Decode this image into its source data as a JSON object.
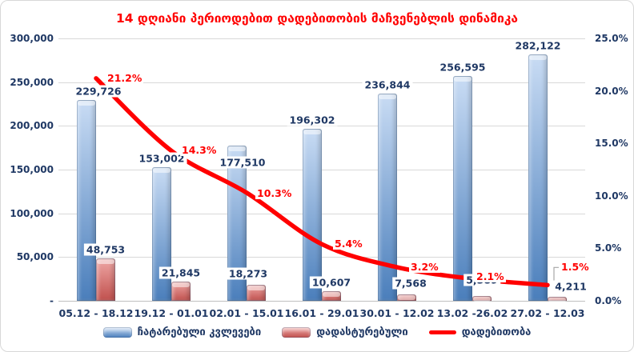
{
  "title": "14 დღიანი პერიოდებით დადებითობის მაჩვენებლის დინამიკა",
  "colors": {
    "title": "#FF0000",
    "axis_text": "#1F3864",
    "line": "#FF0000",
    "bar_blue_top": "#C9DCF4",
    "bar_blue_bottom": "#4A7EBB",
    "bar_red_top": "#EFA8A6",
    "bar_red_bottom": "#C0504D",
    "gridline": "#D9D9D9",
    "axis_line": "#BFBFBF",
    "callout": "#A6A6A6",
    "label_background": "#FFFFFF"
  },
  "chart_data": {
    "type": "bar",
    "subtype": "combo-bar-line",
    "title": "14 დღიანი პერიოდებით დადებითობის მაჩვენებლის დინამიკა",
    "grid": true,
    "legend_position": "bottom",
    "categories": [
      "05.12 - 18.12",
      "19.12 - 01.01",
      "02.01 - 15.01",
      "16.01 - 29.01",
      "30.01 - 12.02",
      "13.02 -26.02",
      "27.02 - 12.03"
    ],
    "series": [
      {
        "name": "ჩატარებული კვლევები",
        "type": "bar",
        "axis": "left",
        "values": [
          229726,
          153002,
          177510,
          196302,
          236844,
          256595,
          282122
        ],
        "labels": [
          "229,726",
          "153,002",
          "177,510",
          "196,302",
          "236,844",
          "256,595",
          "282,122"
        ]
      },
      {
        "name": "დადასტურებული",
        "type": "bar",
        "axis": "left",
        "values": [
          48753,
          21845,
          18273,
          10607,
          7568,
          5389,
          4211
        ],
        "labels": [
          "48,753",
          "21,845",
          "18,273",
          "10,607",
          "7,568",
          "5,389",
          "4,211"
        ]
      },
      {
        "name": "დადებითობა",
        "type": "line",
        "axis": "right",
        "values": [
          21.2,
          14.3,
          10.3,
          5.4,
          3.2,
          2.1,
          1.5
        ],
        "labels": [
          "21.2%",
          "14.3%",
          "10.3%",
          "5.4%",
          "3.2%",
          "2.1%",
          "1.5%"
        ]
      }
    ],
    "left_axis": {
      "max": 300000,
      "min": 0,
      "ticks": [
        "300,000",
        "250,000",
        "200,000",
        "150,000",
        "100,000",
        "50,000",
        "-"
      ]
    },
    "right_axis": {
      "max": 25,
      "min": 0,
      "ticks": [
        "25.0%",
        "20.0%",
        "15.0%",
        "10.0%",
        "5.0%",
        "0.0%"
      ]
    }
  }
}
